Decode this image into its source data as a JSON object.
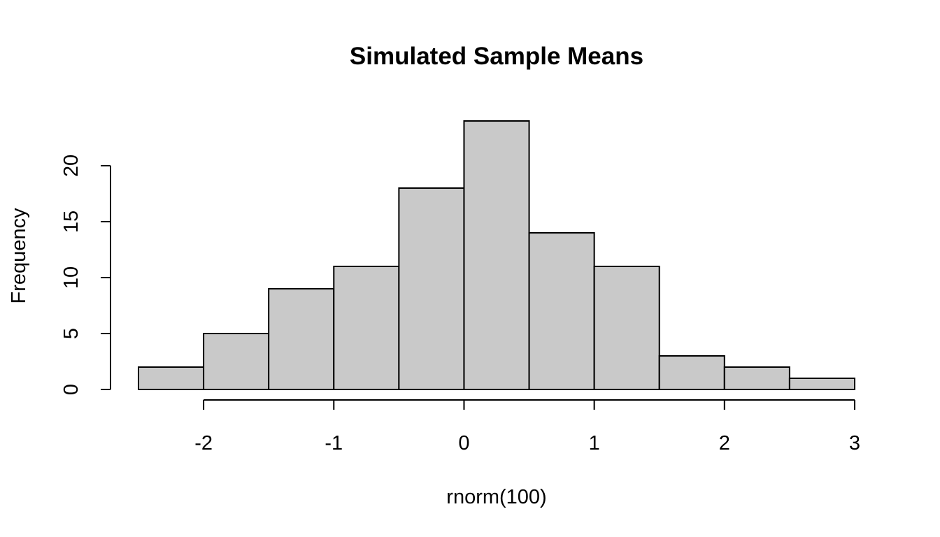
{
  "chart_data": {
    "type": "bar",
    "subtype": "histogram",
    "title": "Simulated Sample Means",
    "xlabel": "rnorm(100)",
    "ylabel": "Frequency",
    "bins": [
      {
        "from": -2.5,
        "to": -2.0,
        "count": 2
      },
      {
        "from": -2.0,
        "to": -1.5,
        "count": 5
      },
      {
        "from": -1.5,
        "to": -1.0,
        "count": 9
      },
      {
        "from": -1.0,
        "to": -0.5,
        "count": 11
      },
      {
        "from": -0.5,
        "to": 0.0,
        "count": 18
      },
      {
        "from": 0.0,
        "to": 0.5,
        "count": 24
      },
      {
        "from": 0.5,
        "to": 1.0,
        "count": 14
      },
      {
        "from": 1.0,
        "to": 1.5,
        "count": 11
      },
      {
        "from": 1.5,
        "to": 2.0,
        "count": 3
      },
      {
        "from": 2.0,
        "to": 2.5,
        "count": 2
      },
      {
        "from": 2.5,
        "to": 3.0,
        "count": 1
      }
    ],
    "x_ticks": [
      {
        "value": -2,
        "label": "-2"
      },
      {
        "value": -1,
        "label": "-1"
      },
      {
        "value": 0,
        "label": "0"
      },
      {
        "value": 1,
        "label": "1"
      },
      {
        "value": 2,
        "label": "2"
      },
      {
        "value": 3,
        "label": "3"
      }
    ],
    "y_ticks": [
      {
        "value": 0,
        "label": "0"
      },
      {
        "value": 5,
        "label": "5"
      },
      {
        "value": 10,
        "label": "10"
      },
      {
        "value": 15,
        "label": "15"
      },
      {
        "value": 20,
        "label": "20"
      }
    ],
    "xlim": [
      -2.5,
      3.0
    ],
    "ylim": [
      0,
      24
    ],
    "grid": false,
    "colors": {
      "bar_fill": "#c9c9c9",
      "bar_stroke": "#000000",
      "axis": "#000000",
      "background": "#ffffff"
    }
  }
}
